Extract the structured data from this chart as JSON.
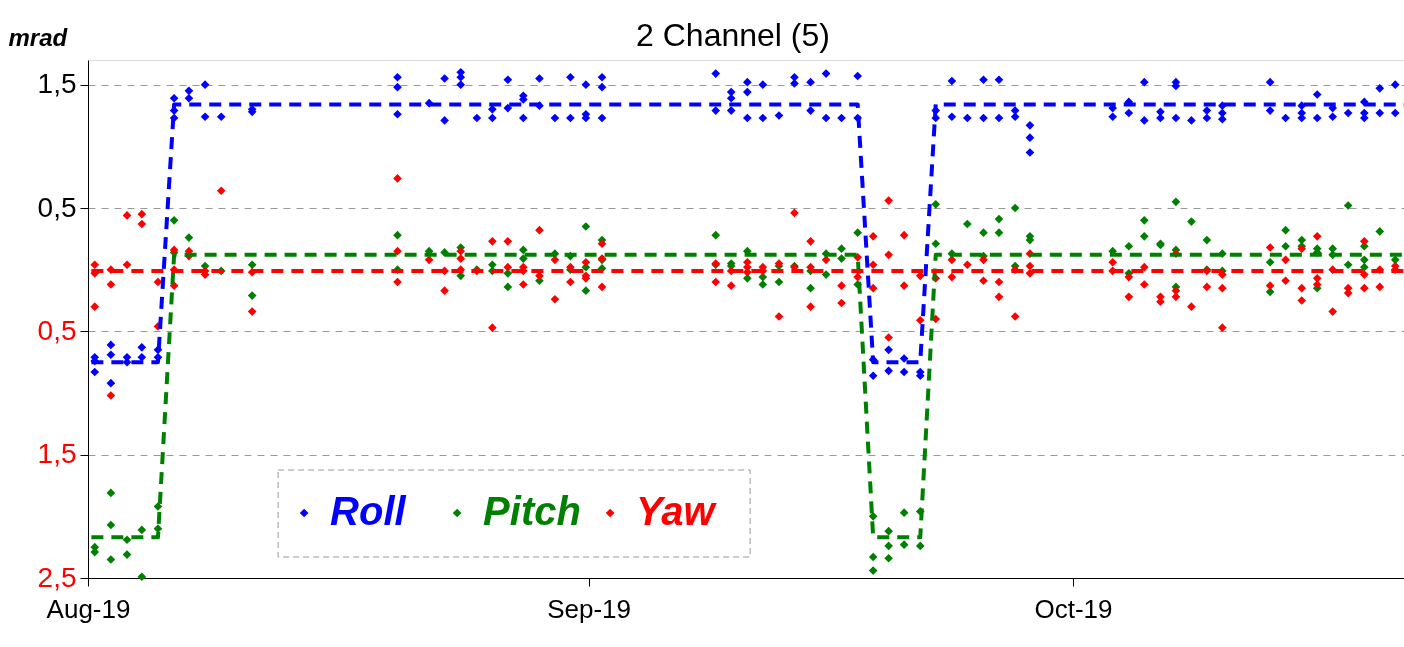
{
  "chart_data": {
    "type": "scatter",
    "title": "2 Channel (5)",
    "ylabel": "mrad",
    "xlim": [
      "2019-08-01T00:00",
      "2019-10-21T12:00"
    ],
    "xticks": [
      {
        "value": "2019-08-01T00:00",
        "label": "Aug-19"
      },
      {
        "value": "2019-09-01T00:00",
        "label": "Sep-19"
      },
      {
        "value": "2019-10-01T00:00",
        "label": "Oct-19"
      }
    ],
    "ylim": [
      -2.5,
      1.7
    ],
    "yticks": [
      {
        "value": 1.5,
        "label": "1,5"
      },
      {
        "value": 0.5,
        "label": "0,5"
      },
      {
        "value": -0.5,
        "label": "0,5"
      },
      {
        "value": -1.5,
        "label": "1,5"
      },
      {
        "value": -2.5,
        "label": "2,5"
      }
    ],
    "grid": "y",
    "legend": "bottom",
    "marker": "diamond",
    "series": [
      {
        "name": "Roll",
        "color": "#0000ff",
        "x": [
          "2019-08-01T10:00",
          "2019-08-01T10:00",
          "2019-08-01T10:00",
          "2019-08-02T10:00",
          "2019-08-02T10:00",
          "2019-08-02T10:00",
          "2019-08-03T10:00",
          "2019-08-03T10:00",
          "2019-08-04T08:00",
          "2019-08-04T08:00",
          "2019-08-05T08:00",
          "2019-08-05T08:00",
          "2019-08-06T08:00",
          "2019-08-06T08:00",
          "2019-08-06T08:00",
          "2019-08-07T06:00",
          "2019-08-07T06:00",
          "2019-08-08T06:00",
          "2019-08-08T06:00",
          "2019-08-09T06:00",
          "2019-08-11T04:00",
          "2019-08-11T04:00",
          "2019-08-20T04:00",
          "2019-08-20T04:00",
          "2019-08-20T04:00",
          "2019-08-22T03:00",
          "2019-08-23T02:00",
          "2019-08-23T02:00",
          "2019-08-24T02:00",
          "2019-08-24T02:00",
          "2019-08-24T02:00",
          "2019-08-25T02:00",
          "2019-08-26T01:00",
          "2019-08-26T01:00",
          "2019-08-27T00:00",
          "2019-08-27T00:00",
          "2019-08-27T23:00",
          "2019-08-27T23:00",
          "2019-08-27T23:00",
          "2019-08-28T23:00",
          "2019-08-28T23:00",
          "2019-08-29T22:00",
          "2019-08-30T21:00",
          "2019-08-30T21:00",
          "2019-08-31T20:00",
          "2019-08-31T20:00",
          "2019-08-31T20:00",
          "2019-09-01T20:00",
          "2019-09-01T20:00",
          "2019-09-01T20:00",
          "2019-09-08T21:00",
          "2019-09-08T21:00",
          "2019-09-09T20:00",
          "2019-09-09T20:00",
          "2019-09-09T20:00",
          "2019-09-10T20:00",
          "2019-09-10T20:00",
          "2019-09-10T20:00",
          "2019-09-11T19:00",
          "2019-09-11T19:00",
          "2019-09-12T19:00",
          "2019-09-13T18:00",
          "2019-09-13T18:00",
          "2019-09-14T18:00",
          "2019-09-14T18:00",
          "2019-09-15T17:00",
          "2019-09-15T17:00",
          "2019-09-16T16:00",
          "2019-09-17T16:00",
          "2019-09-17T16:00",
          "2019-09-18T15:00",
          "2019-09-18T15:00",
          "2019-09-19T14:00",
          "2019-09-19T14:00",
          "2019-09-20T13:00",
          "2019-09-20T13:00",
          "2019-09-21T13:00",
          "2019-09-21T13:00",
          "2019-09-22T12:00",
          "2019-09-22T12:00",
          "2019-09-23T12:00",
          "2019-09-23T12:00",
          "2019-09-24T11:00",
          "2019-09-25T11:00",
          "2019-09-25T11:00",
          "2019-09-26T10:00",
          "2019-09-26T10:00",
          "2019-09-27T10:00",
          "2019-09-27T10:00",
          "2019-09-28T08:00",
          "2019-09-28T08:00",
          "2019-09-28T08:00",
          "2019-10-03T11:00",
          "2019-10-03T11:00",
          "2019-10-04T11:00",
          "2019-10-04T11:00",
          "2019-10-05T10:00",
          "2019-10-05T10:00",
          "2019-10-06T10:00",
          "2019-10-06T10:00",
          "2019-10-07T09:00",
          "2019-10-07T09:00",
          "2019-10-07T09:00",
          "2019-10-08T08:00",
          "2019-10-09T07:00",
          "2019-10-09T07:00",
          "2019-10-10T06:00",
          "2019-10-10T06:00",
          "2019-10-10T06:00",
          "2019-10-13T05:00",
          "2019-10-13T05:00",
          "2019-10-14T04:00",
          "2019-10-15T04:00",
          "2019-10-15T04:00",
          "2019-10-15T04:00",
          "2019-10-16T03:00",
          "2019-10-16T03:00",
          "2019-10-17T02:00",
          "2019-10-17T02:00",
          "2019-10-18T01:00",
          "2019-10-19T01:00",
          "2019-10-19T01:00",
          "2019-10-19T01:00",
          "2019-10-20T00:00",
          "2019-10-20T00:00",
          "2019-10-20T23:00",
          "2019-10-20T23:00"
        ],
        "values": [
          -0.71,
          -0.74,
          -0.83,
          -0.61,
          -0.69,
          -0.92,
          -0.71,
          -0.75,
          -0.63,
          -0.71,
          -0.65,
          -0.71,
          1.39,
          1.29,
          1.23,
          1.45,
          1.39,
          1.5,
          1.24,
          1.24,
          1.3,
          1.28,
          1.56,
          1.48,
          1.26,
          1.35,
          1.55,
          1.21,
          1.6,
          1.56,
          1.5,
          1.23,
          1.3,
          1.23,
          1.54,
          1.31,
          1.41,
          1.38,
          1.23,
          1.55,
          1.33,
          1.23,
          1.56,
          1.23,
          1.5,
          1.26,
          1.23,
          1.56,
          1.48,
          1.23,
          1.59,
          1.29,
          1.44,
          1.39,
          1.29,
          1.52,
          1.44,
          1.23,
          1.5,
          1.23,
          1.25,
          1.56,
          1.51,
          1.52,
          1.29,
          1.59,
          1.23,
          1.23,
          1.57,
          1.23,
          -0.73,
          -0.86,
          -0.65,
          -0.82,
          -0.72,
          -0.83,
          -0.83,
          -0.86,
          1.29,
          1.23,
          1.53,
          1.24,
          1.23,
          1.54,
          1.23,
          1.54,
          1.23,
          1.29,
          1.24,
          1.17,
          1.07,
          0.95,
          1.31,
          1.24,
          1.36,
          1.27,
          1.52,
          1.21,
          1.28,
          1.23,
          1.52,
          1.49,
          1.23,
          1.21,
          1.29,
          1.23,
          1.33,
          1.27,
          1.22,
          1.52,
          1.29,
          1.23,
          1.33,
          1.27,
          1.23,
          1.42,
          1.23,
          1.31,
          1.24,
          1.27,
          1.36,
          1.27,
          1.23,
          1.47,
          1.27,
          1.5,
          1.27
        ]
      },
      {
        "name": "Pitch",
        "color": "#008000",
        "x": [
          "2019-08-01T10:00",
          "2019-08-01T10:00",
          "2019-08-02T10:00",
          "2019-08-02T10:00",
          "2019-08-02T10:00",
          "2019-08-03T10:00",
          "2019-08-03T10:00",
          "2019-08-04T08:00",
          "2019-08-04T08:00",
          "2019-08-05T08:00",
          "2019-08-05T08:00",
          "2019-08-06T08:00",
          "2019-08-06T08:00",
          "2019-08-07T06:00",
          "2019-08-08T06:00",
          "2019-08-09T06:00",
          "2019-08-11T04:00",
          "2019-08-11T04:00",
          "2019-08-20T04:00",
          "2019-08-20T04:00",
          "2019-08-22T03:00",
          "2019-08-23T02:00",
          "2019-08-24T02:00",
          "2019-08-24T02:00",
          "2019-08-25T02:00",
          "2019-08-26T01:00",
          "2019-08-26T01:00",
          "2019-08-27T00:00",
          "2019-08-27T00:00",
          "2019-08-27T23:00",
          "2019-08-27T23:00",
          "2019-08-28T23:00",
          "2019-08-29T22:00",
          "2019-08-30T21:00",
          "2019-08-30T21:00",
          "2019-08-31T20:00",
          "2019-08-31T20:00",
          "2019-08-31T20:00",
          "2019-09-01T20:00",
          "2019-09-01T20:00",
          "2019-09-01T20:00",
          "2019-09-08T21:00",
          "2019-09-08T21:00",
          "2019-09-09T20:00",
          "2019-09-09T20:00",
          "2019-09-10T20:00",
          "2019-09-10T20:00",
          "2019-09-11T19:00",
          "2019-09-11T19:00",
          "2019-09-12T19:00",
          "2019-09-12T19:00",
          "2019-09-13T18:00",
          "2019-09-14T18:00",
          "2019-09-14T18:00",
          "2019-09-15T17:00",
          "2019-09-15T17:00",
          "2019-09-16T16:00",
          "2019-09-16T16:00",
          "2019-09-17T16:00",
          "2019-09-17T16:00",
          "2019-09-18T15:00",
          "2019-09-18T15:00",
          "2019-09-18T15:00",
          "2019-09-19T14:00",
          "2019-09-19T14:00",
          "2019-09-19T14:00",
          "2019-09-20T13:00",
          "2019-09-20T13:00",
          "2019-09-21T13:00",
          "2019-09-21T13:00",
          "2019-09-22T12:00",
          "2019-09-22T12:00",
          "2019-09-23T12:00",
          "2019-09-24T11:00",
          "2019-09-25T11:00",
          "2019-09-25T11:00",
          "2019-09-26T10:00",
          "2019-09-26T10:00",
          "2019-09-27T10:00",
          "2019-09-27T10:00",
          "2019-09-28T08:00",
          "2019-09-28T08:00",
          "2019-10-03T11:00",
          "2019-10-04T11:00",
          "2019-10-04T11:00",
          "2019-10-05T10:00",
          "2019-10-05T10:00",
          "2019-10-06T10:00",
          "2019-10-06T10:00",
          "2019-10-07T09:00",
          "2019-10-07T09:00",
          "2019-10-07T09:00",
          "2019-10-08T08:00",
          "2019-10-09T07:00",
          "2019-10-09T07:00",
          "2019-10-10T06:00",
          "2019-10-10T06:00",
          "2019-10-13T05:00",
          "2019-10-13T05:00",
          "2019-10-14T04:00",
          "2019-10-14T04:00",
          "2019-10-15T04:00",
          "2019-10-15T04:00",
          "2019-10-16T03:00",
          "2019-10-16T03:00",
          "2019-10-16T03:00",
          "2019-10-17T02:00",
          "2019-10-17T02:00",
          "2019-10-18T01:00",
          "2019-10-18T01:00",
          "2019-10-19T01:00",
          "2019-10-19T01:00",
          "2019-10-19T01:00",
          "2019-10-20T00:00",
          "2019-10-20T23:00"
        ],
        "values": [
          -2.25,
          -2.29,
          -1.81,
          -2.07,
          -2.35,
          -2.19,
          -2.31,
          -2.11,
          -2.49,
          -1.92,
          -2.1,
          0.4,
          0.14,
          0.26,
          0.03,
          -0.01,
          0.04,
          -0.21,
          0.28,
          0.0,
          0.15,
          0.14,
          0.18,
          -0.05,
          0.0,
          0.04,
          -0.01,
          -0.03,
          -0.14,
          0.16,
          0.09,
          -0.09,
          0.13,
          0.11,
          0.0,
          0.35,
          0.02,
          -0.17,
          0.24,
          0.08,
          0.01,
          0.28,
          0.04,
          0.05,
          0.03,
          0.15,
          -0.07,
          -0.06,
          -0.12,
          0.03,
          -0.1,
          0.03,
          -0.01,
          -0.15,
          0.13,
          -0.04,
          0.17,
          0.09,
          0.3,
          -0.12,
          -2.0,
          -2.33,
          -2.44,
          -2.12,
          -2.24,
          -2.34,
          -1.97,
          -2.23,
          -1.96,
          -2.24,
          0.53,
          0.21,
          0.13,
          0.37,
          0.3,
          0.11,
          0.41,
          0.3,
          0.5,
          0.03,
          0.27,
          0.24,
          0.15,
          0.19,
          -0.03,
          0.4,
          0.27,
          0.21,
          0.2,
          0.55,
          0.16,
          -0.14,
          0.39,
          0.24,
          0.0,
          0.13,
          -0.01,
          0.06,
          -0.18,
          0.32,
          0.19,
          0.24,
          0.19,
          0.17,
          0.14,
          -0.15,
          0.17,
          0.12,
          0.52,
          0.04,
          0.19,
          0.08,
          0.02,
          0.31,
          0.08
        ]
      },
      {
        "name": "Yaw",
        "color": "#ff0000",
        "x": [
          "2019-08-01T10:00",
          "2019-08-01T10:00",
          "2019-08-01T10:00",
          "2019-08-02T10:00",
          "2019-08-02T10:00",
          "2019-08-02T10:00",
          "2019-08-03T10:00",
          "2019-08-03T10:00",
          "2019-08-04T08:00",
          "2019-08-04T08:00",
          "2019-08-05T08:00",
          "2019-08-05T08:00",
          "2019-08-06T08:00",
          "2019-08-06T08:00",
          "2019-08-06T08:00",
          "2019-08-07T06:00",
          "2019-08-07T06:00",
          "2019-08-08T06:00",
          "2019-08-08T06:00",
          "2019-08-09T06:00",
          "2019-08-11T04:00",
          "2019-08-11T04:00",
          "2019-08-20T04:00",
          "2019-08-20T04:00",
          "2019-08-20T04:00",
          "2019-08-22T03:00",
          "2019-08-23T02:00",
          "2019-08-23T02:00",
          "2019-08-24T02:00",
          "2019-08-24T02:00",
          "2019-08-24T02:00",
          "2019-08-25T02:00",
          "2019-08-26T01:00",
          "2019-08-26T01:00",
          "2019-08-27T00:00",
          "2019-08-27T00:00",
          "2019-08-27T23:00",
          "2019-08-27T23:00",
          "2019-08-27T23:00",
          "2019-08-28T23:00",
          "2019-08-28T23:00",
          "2019-08-29T22:00",
          "2019-08-29T22:00",
          "2019-08-30T21:00",
          "2019-08-30T21:00",
          "2019-08-31T20:00",
          "2019-08-31T20:00",
          "2019-08-31T20:00",
          "2019-09-01T20:00",
          "2019-09-01T20:00",
          "2019-09-01T20:00",
          "2019-09-08T21:00",
          "2019-09-08T21:00",
          "2019-09-09T20:00",
          "2019-09-09T20:00",
          "2019-09-10T20:00",
          "2019-09-10T20:00",
          "2019-09-10T20:00",
          "2019-09-11T19:00",
          "2019-09-11T19:00",
          "2019-09-12T19:00",
          "2019-09-12T19:00",
          "2019-09-13T18:00",
          "2019-09-13T18:00",
          "2019-09-14T18:00",
          "2019-09-14T18:00",
          "2019-09-14T18:00",
          "2019-09-15T17:00",
          "2019-09-16T16:00",
          "2019-09-16T16:00",
          "2019-09-17T16:00",
          "2019-09-17T16:00",
          "2019-09-18T15:00",
          "2019-09-18T15:00",
          "2019-09-18T15:00",
          "2019-09-19T14:00",
          "2019-09-19T14:00",
          "2019-09-19T14:00",
          "2019-09-20T13:00",
          "2019-09-20T13:00",
          "2019-09-21T13:00",
          "2019-09-21T13:00",
          "2019-09-22T12:00",
          "2019-09-22T12:00",
          "2019-09-23T12:00",
          "2019-09-23T12:00",
          "2019-09-24T11:00",
          "2019-09-25T11:00",
          "2019-09-25T11:00",
          "2019-09-26T10:00",
          "2019-09-26T10:00",
          "2019-09-27T10:00",
          "2019-09-27T10:00",
          "2019-09-28T08:00",
          "2019-09-28T08:00",
          "2019-09-28T08:00",
          "2019-10-03T11:00",
          "2019-10-03T11:00",
          "2019-10-04T11:00",
          "2019-10-04T11:00",
          "2019-10-05T10:00",
          "2019-10-05T10:00",
          "2019-10-06T10:00",
          "2019-10-06T10:00",
          "2019-10-07T09:00",
          "2019-10-07T09:00",
          "2019-10-07T09:00",
          "2019-10-08T08:00",
          "2019-10-09T07:00",
          "2019-10-09T07:00",
          "2019-10-10T06:00",
          "2019-10-10T06:00",
          "2019-10-10T06:00",
          "2019-10-13T05:00",
          "2019-10-13T05:00",
          "2019-10-14T04:00",
          "2019-10-14T04:00",
          "2019-10-15T04:00",
          "2019-10-15T04:00",
          "2019-10-15T04:00",
          "2019-10-16T03:00",
          "2019-10-16T03:00",
          "2019-10-16T03:00",
          "2019-10-17T02:00",
          "2019-10-17T02:00",
          "2019-10-18T01:00",
          "2019-10-18T01:00",
          "2019-10-19T01:00",
          "2019-10-19T01:00",
          "2019-10-19T01:00",
          "2019-10-20T00:00",
          "2019-10-20T00:00",
          "2019-10-20T23:00",
          "2019-10-20T23:00"
        ],
        "values": [
          0.04,
          -0.03,
          -0.3,
          0.0,
          -0.12,
          -1.02,
          0.44,
          0.04,
          0.45,
          0.37,
          -0.1,
          -0.46,
          0.16,
          0.0,
          -0.13,
          0.15,
          0.11,
          -0.01,
          -0.04,
          0.64,
          -0.02,
          -0.34,
          0.74,
          0.15,
          -0.1,
          0.08,
          -0.01,
          -0.17,
          0.15,
          0.09,
          0.0,
          -0.01,
          0.23,
          -0.47,
          0.23,
          0.02,
          0.02,
          -0.01,
          -0.12,
          0.32,
          -0.05,
          0.08,
          -0.24,
          0.02,
          -0.1,
          0.06,
          -0.05,
          -0.07,
          0.21,
          0.09,
          -0.14,
          0.05,
          -0.1,
          -0.01,
          -0.13,
          0.06,
          0.02,
          -0.02,
          0.02,
          -0.01,
          0.05,
          -0.38,
          0.46,
          0.02,
          0.23,
          0.02,
          -0.3,
          0.08,
          -0.13,
          -0.27,
          0.1,
          -0.06,
          0.27,
          0.04,
          -0.15,
          0.56,
          0.12,
          -0.55,
          0.28,
          -0.13,
          -0.05,
          -0.41,
          -0.07,
          -0.4,
          0.08,
          -0.06,
          0.04,
          0.08,
          -0.09,
          -0.1,
          -0.22,
          0.0,
          -0.38,
          0.13,
          0.03,
          -0.03,
          0.06,
          -0.01,
          -0.06,
          -0.22,
          0.02,
          -0.12,
          -0.22,
          -0.26,
          0.13,
          -0.17,
          -0.22,
          -0.3,
          -0.01,
          -0.14,
          -0.04,
          -0.15,
          -0.47,
          0.18,
          -0.13,
          0.08,
          -0.09,
          0.17,
          -0.15,
          -0.25,
          0.27,
          -0.07,
          -0.12,
          0.0,
          -0.34,
          -0.15,
          -0.19,
          0.23,
          -0.04,
          -0.15,
          0.0,
          -0.14,
          0.03,
          0.0
        ]
      },
      {
        "color": "#0000ff",
        "type": "line",
        "marker": "none",
        "line_style": "dashed",
        "x": [
          "2019-08-01T05:00",
          "2019-08-05T08:00",
          "2019-08-06T08:00",
          "2019-09-17T16:00",
          "2019-09-18T15:00",
          "2019-09-21T13:00",
          "2019-09-22T12:00",
          "2019-10-21T12:00"
        ],
        "values": [
          -0.75,
          -0.75,
          1.34,
          1.34,
          -0.75,
          -0.75,
          1.34,
          1.34
        ]
      },
      {
        "color": "#008000",
        "type": "line",
        "marker": "none",
        "line_style": "dashed",
        "x": [
          "2019-08-01T05:00",
          "2019-08-05T08:00",
          "2019-08-06T08:00",
          "2019-09-17T16:00",
          "2019-09-18T15:00",
          "2019-09-21T13:00",
          "2019-09-22T12:00",
          "2019-10-21T12:00"
        ],
        "values": [
          -2.17,
          -2.17,
          0.12,
          0.12,
          -2.17,
          -2.17,
          0.12,
          0.12
        ]
      },
      {
        "color": "#ff0000",
        "type": "line",
        "marker": "none",
        "line_style": "dashed",
        "x": [
          "2019-08-01T05:00",
          "2019-10-21T12:00"
        ],
        "values": [
          -0.01,
          -0.01
        ]
      }
    ]
  }
}
